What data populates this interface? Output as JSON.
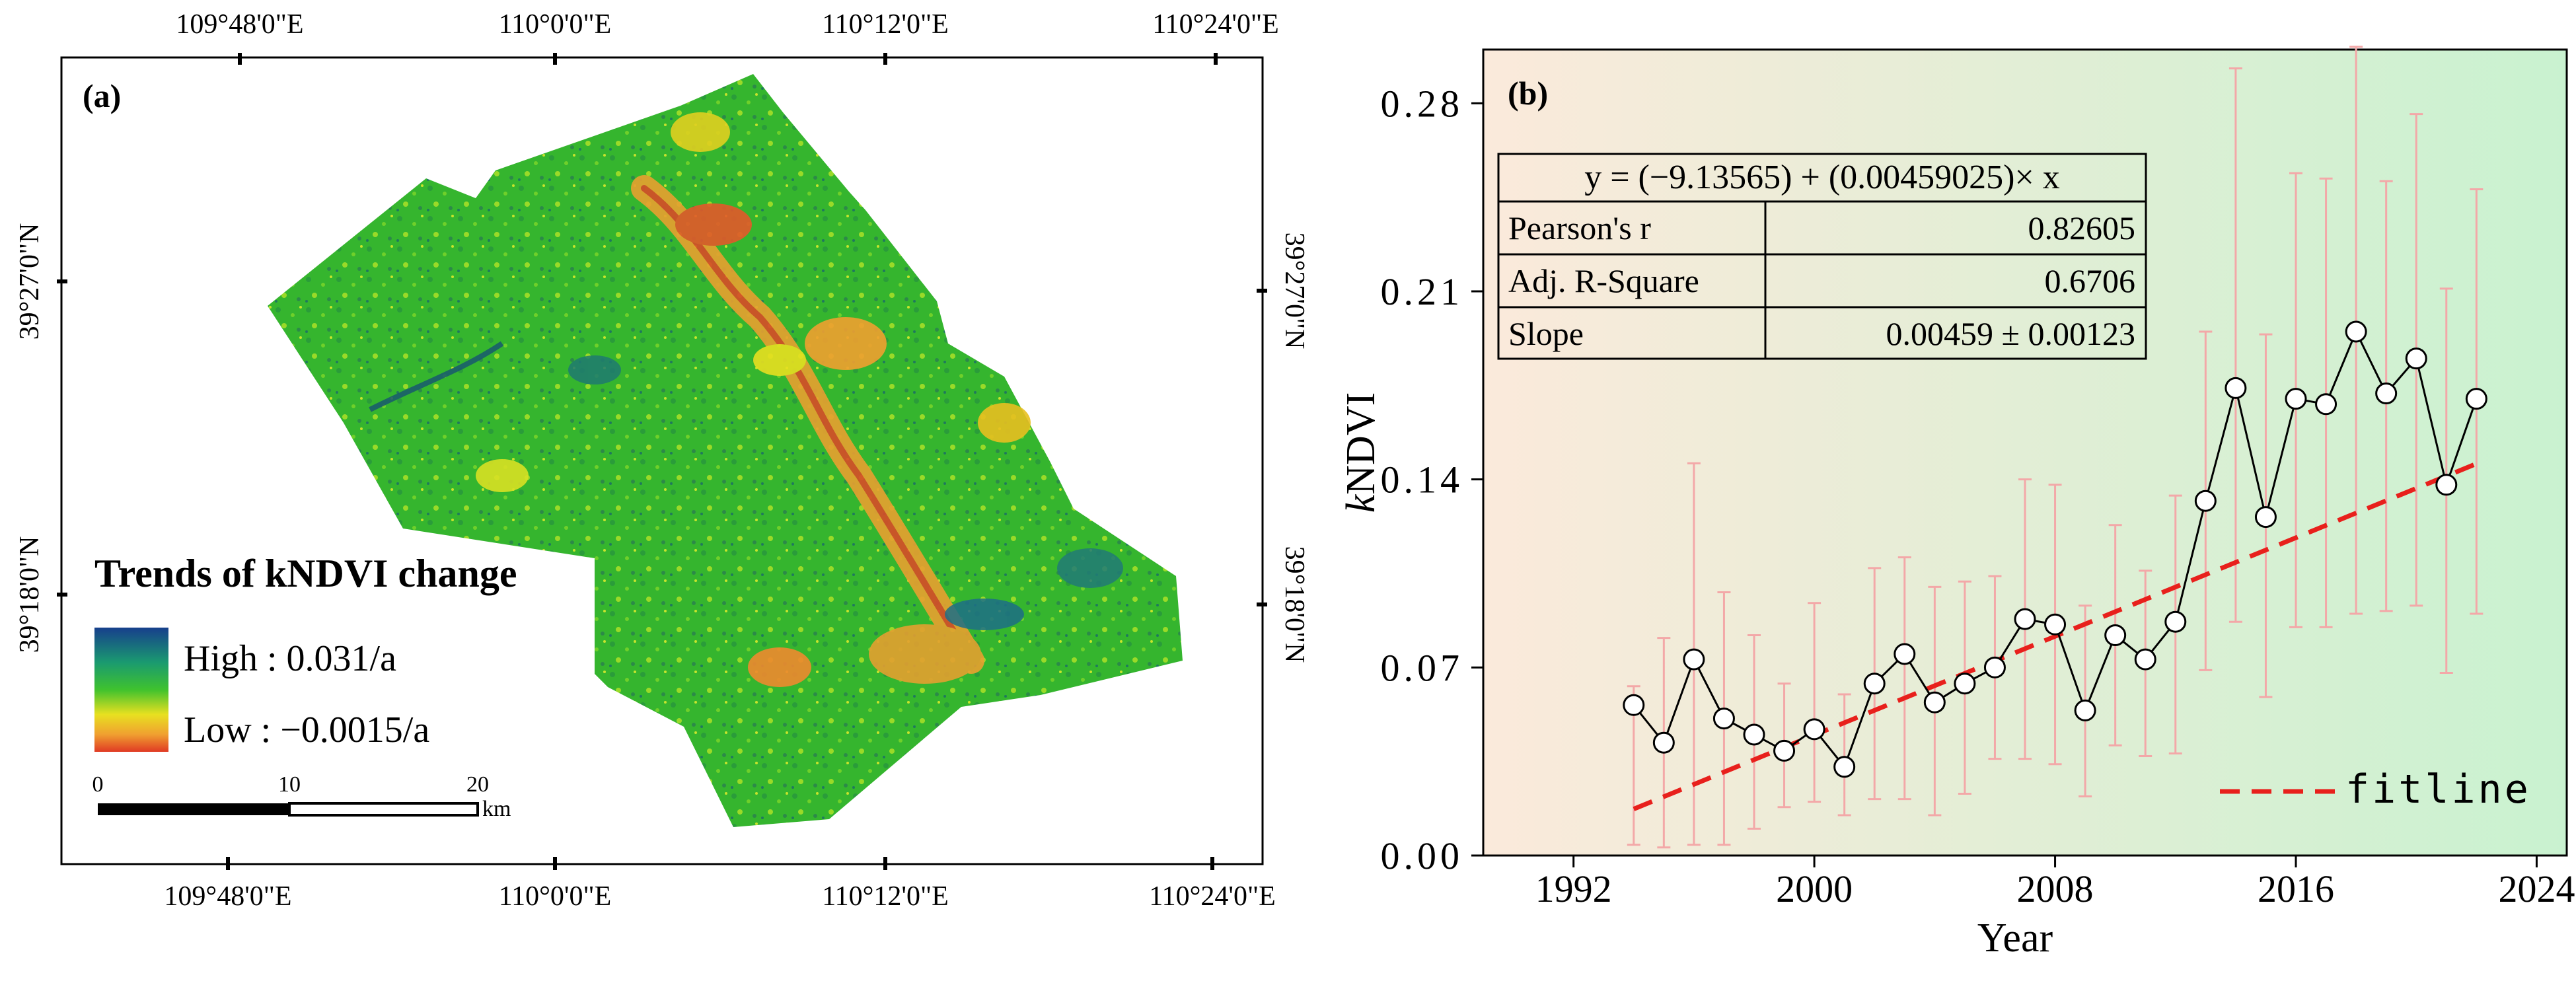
{
  "map": {
    "panel_label": "(a)",
    "top_ticks": [
      "109°48'0\"E",
      "110°0'0\"E",
      "110°12'0\"E",
      "110°24'0\"E"
    ],
    "bottom_ticks": [
      "109°48'0\"E",
      "110°0'0\"E",
      "110°12'0\"E",
      "110°24'0\"E"
    ],
    "left_ticks": [
      "39°27'0\"N",
      "39°18'0\"N"
    ],
    "right_ticks": [
      "39°27'0\"N",
      "39°18'0\"N"
    ],
    "legend_title": "Trends of kNDVI change",
    "legend_high": "High : 0.031/a",
    "legend_low": "Low : −0.0015/a",
    "scalebar": {
      "labels": [
        "0",
        "10",
        "20"
      ],
      "unit": "km"
    },
    "colors": {
      "high": "#173f8c",
      "mid": "#1fa84c",
      "green": "#3fc22e",
      "yellow": "#e8e020",
      "orange": "#f0a030",
      "low": "#e03a24"
    }
  },
  "chart_data": {
    "type": "line",
    "panel_label": "(b)",
    "xlabel": "Year",
    "ylabel_italic": "k",
    "ylabel_rest": "NDVI",
    "xlim": [
      1989,
      2025
    ],
    "ylim": [
      0,
      0.3
    ],
    "xticks": [
      1992,
      2000,
      2008,
      2016,
      2024
    ],
    "yticks": [
      0.0,
      0.07,
      0.14,
      0.21,
      0.28
    ],
    "ytick_labels": [
      "0.00",
      "0.07",
      "0.14",
      "0.21",
      "0.28"
    ],
    "x": [
      1994,
      1995,
      1996,
      1997,
      1998,
      1999,
      2000,
      2001,
      2002,
      2003,
      2004,
      2005,
      2006,
      2007,
      2008,
      2009,
      2010,
      2011,
      2012,
      2013,
      2014,
      2015,
      2016,
      2017,
      2018,
      2019,
      2020,
      2021,
      2022
    ],
    "values": [
      0.056,
      0.042,
      0.073,
      0.051,
      0.045,
      0.039,
      0.047,
      0.033,
      0.064,
      0.075,
      0.057,
      0.064,
      0.07,
      0.088,
      0.086,
      0.054,
      0.082,
      0.073,
      0.087,
      0.132,
      0.174,
      0.126,
      0.17,
      0.168,
      0.195,
      0.172,
      0.185,
      0.138,
      0.17
    ],
    "err_upper": [
      0.063,
      0.081,
      0.146,
      0.098,
      0.082,
      0.064,
      0.094,
      0.06,
      0.107,
      0.111,
      0.1,
      0.102,
      0.104,
      0.14,
      0.138,
      0.093,
      0.123,
      0.106,
      0.134,
      0.195,
      0.293,
      0.194,
      0.254,
      0.252,
      0.301,
      0.251,
      0.276,
      0.211,
      0.248
    ],
    "err_lower": [
      0.004,
      0.003,
      0.004,
      0.004,
      0.01,
      0.018,
      0.02,
      0.015,
      0.021,
      0.021,
      0.015,
      0.023,
      0.036,
      0.036,
      0.034,
      0.022,
      0.041,
      0.037,
      0.038,
      0.069,
      0.087,
      0.059,
      0.085,
      0.085,
      0.09,
      0.091,
      0.093,
      0.068,
      0.09
    ],
    "fit": {
      "intercept": -9.13565,
      "slope": 0.00459025,
      "x_range": [
        1994,
        2022
      ],
      "label": "fitline",
      "color": "#e8201c"
    },
    "table": {
      "equation": "y = (−9.13565) + (0.00459025)× x",
      "rows": [
        {
          "label": "Pearson's r",
          "value": "0.82605"
        },
        {
          "label": "Adj. R-Square",
          "value": "0.6706"
        },
        {
          "label": "Slope",
          "value": "0.00459 ± 0.00123"
        }
      ]
    },
    "errorbar_color": "#f3a8a8",
    "bg_left": "#fbeadb",
    "bg_right": "#c9f2d0"
  }
}
